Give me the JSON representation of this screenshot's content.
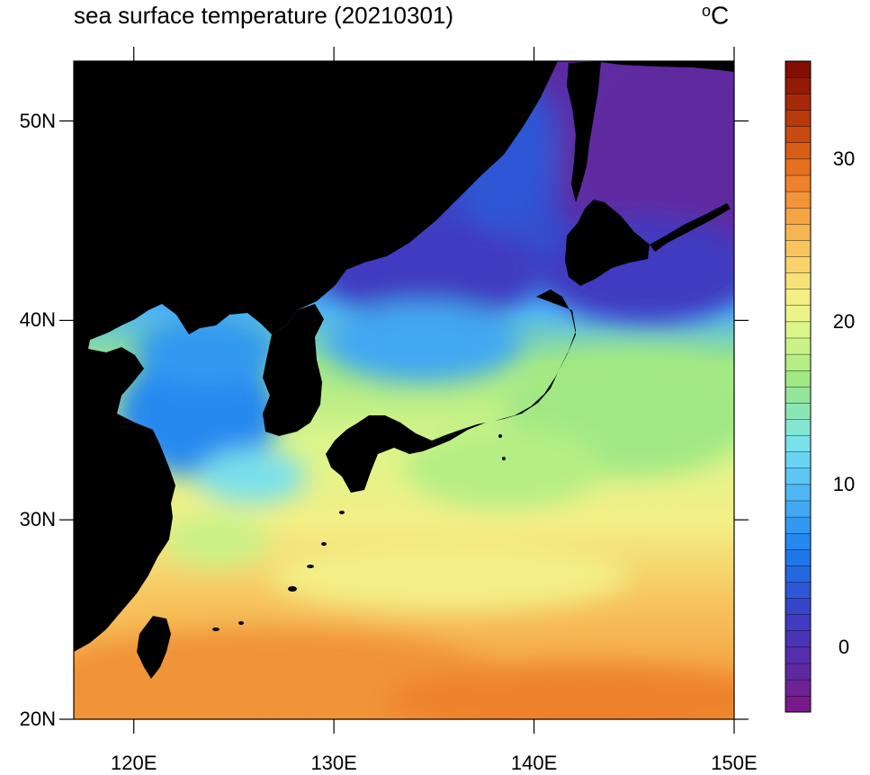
{
  "map": {
    "title": "sea surface temperature (20210301)",
    "unit": "°C",
    "unit_deg": "o",
    "unit_letter": "C",
    "extent": {
      "lon": [
        117,
        150
      ],
      "lat": [
        20,
        53
      ]
    },
    "lat_ticks": [
      {
        "value": 50,
        "label": "50N"
      },
      {
        "value": 40,
        "label": "40N"
      },
      {
        "value": 30,
        "label": "30N"
      },
      {
        "value": 20,
        "label": "20N"
      }
    ],
    "lon_ticks": [
      {
        "value": 120,
        "label": "120E"
      },
      {
        "value": 130,
        "label": "130E"
      },
      {
        "value": 140,
        "label": "140E"
      },
      {
        "value": 150,
        "label": "150E"
      }
    ],
    "land_color": "#000000"
  },
  "colorbar": {
    "min": -4,
    "max": 36,
    "step": 1,
    "labels": [
      {
        "value": 0,
        "label": "0"
      },
      {
        "value": 10,
        "label": "10"
      },
      {
        "value": 20,
        "label": "20"
      },
      {
        "value": 30,
        "label": "30"
      }
    ],
    "colors": [
      "#7a1a8a",
      "#6d2395",
      "#5f2aa0",
      "#542eab",
      "#4a34b6",
      "#403bc0",
      "#3646cb",
      "#2e57d6",
      "#2468e0",
      "#1f78ea",
      "#2589ef",
      "#3399f0",
      "#42a8f2",
      "#4fb7f4",
      "#5cc6f5",
      "#6bd4f3",
      "#7ae0ea",
      "#83e6d2",
      "#8be6b5",
      "#92e59a",
      "#a0e884",
      "#b5ee84",
      "#caf287",
      "#dcf58a",
      "#eaf48a",
      "#f3ef86",
      "#f7e27a",
      "#f8d36c",
      "#f7c45e",
      "#f5b550",
      "#f3a443",
      "#f19337",
      "#ee822b",
      "#e57020",
      "#d85e18",
      "#c84c12",
      "#b73a0d",
      "#a52a09",
      "#931b06",
      "#820e04"
    ]
  }
}
